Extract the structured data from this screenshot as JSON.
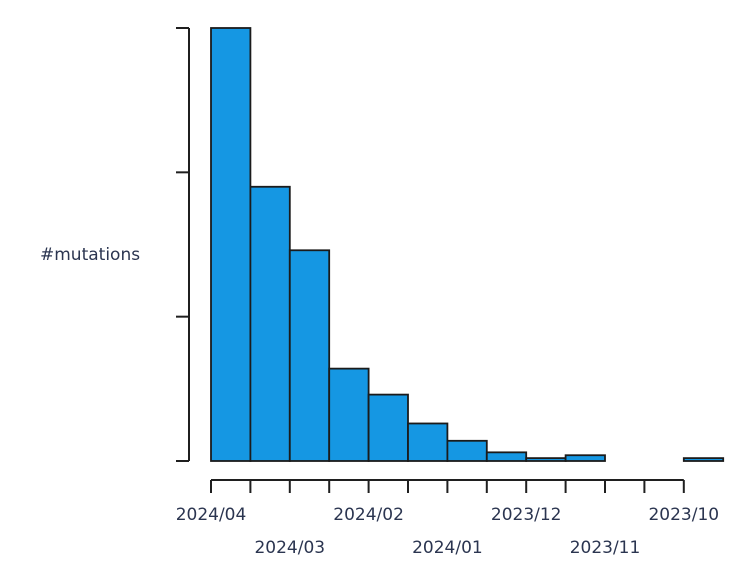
{
  "chart_data": {
    "type": "bar",
    "title": "",
    "ylabel": "#mutations",
    "xlabel": "",
    "categories": [
      "2024/04",
      "",
      "2024/03",
      "",
      "2024/02",
      "",
      "2024/01",
      "",
      "2023/12",
      "",
      "2023/11",
      "",
      "2023/10"
    ],
    "values": [
      300,
      190,
      146,
      64,
      46,
      26,
      14,
      6,
      2,
      4,
      0,
      0,
      2
    ],
    "ylim": [
      0,
      300
    ],
    "x_tick_labels": [
      {
        "bin": 0,
        "label": "2024/04",
        "row": 1
      },
      {
        "bin": 2,
        "label": "2024/03",
        "row": 2
      },
      {
        "bin": 4,
        "label": "2024/02",
        "row": 1
      },
      {
        "bin": 6,
        "label": "2024/01",
        "row": 2
      },
      {
        "bin": 8,
        "label": "2023/12",
        "row": 1
      },
      {
        "bin": 10,
        "label": "2023/11",
        "row": 2
      },
      {
        "bin": 12,
        "label": "2023/10",
        "row": 1
      }
    ],
    "y_ticks": [
      0,
      100,
      200,
      300
    ],
    "y_tick_labels_shown": false,
    "grid": false,
    "bar_color": "#1597e3",
    "edge_color": "#1b1b1b"
  }
}
